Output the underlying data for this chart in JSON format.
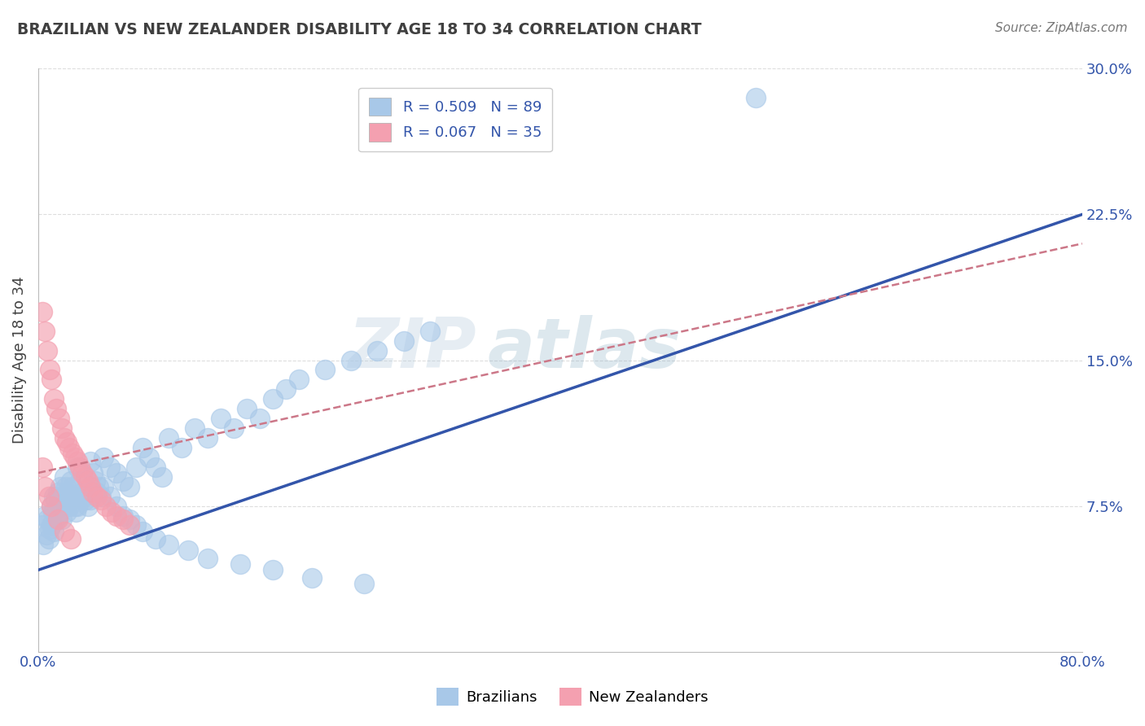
{
  "title": "BRAZILIAN VS NEW ZEALANDER DISABILITY AGE 18 TO 34 CORRELATION CHART",
  "source": "Source: ZipAtlas.com",
  "ylabel": "Disability Age 18 to 34",
  "xlim": [
    0.0,
    0.8
  ],
  "ylim": [
    0.0,
    0.3
  ],
  "xticks": [
    0.0,
    0.2,
    0.4,
    0.6,
    0.8
  ],
  "xtick_labels": [
    "0.0%",
    "",
    "",
    "",
    "80.0%"
  ],
  "ytick_labels_right": [
    "30.0%",
    "22.5%",
    "15.0%",
    "7.5%"
  ],
  "ytick_vals_right": [
    0.3,
    0.225,
    0.15,
    0.075
  ],
  "watermark": "ZIPatlas",
  "blue_R": 0.509,
  "blue_N": 89,
  "pink_R": 0.067,
  "pink_N": 35,
  "blue_color": "#A8C8E8",
  "pink_color": "#F4A0B0",
  "blue_line_color": "#3355AA",
  "pink_line_color": "#CC7788",
  "grid_color": "#DDDDDD",
  "title_color": "#404040",
  "blue_line_x0": 0.0,
  "blue_line_x1": 0.8,
  "blue_line_y0": 0.042,
  "blue_line_y1": 0.225,
  "pink_line_x0": 0.0,
  "pink_line_x1": 0.8,
  "pink_line_y0": 0.092,
  "pink_line_y1": 0.21,
  "blue_scatter_x": [
    0.003,
    0.005,
    0.007,
    0.009,
    0.01,
    0.011,
    0.012,
    0.013,
    0.014,
    0.015,
    0.016,
    0.017,
    0.018,
    0.019,
    0.02,
    0.021,
    0.022,
    0.023,
    0.024,
    0.025,
    0.026,
    0.027,
    0.028,
    0.029,
    0.03,
    0.032,
    0.034,
    0.036,
    0.038,
    0.04,
    0.042,
    0.044,
    0.046,
    0.048,
    0.05,
    0.055,
    0.06,
    0.065,
    0.07,
    0.075,
    0.08,
    0.085,
    0.09,
    0.095,
    0.1,
    0.11,
    0.12,
    0.13,
    0.14,
    0.15,
    0.16,
    0.17,
    0.18,
    0.19,
    0.2,
    0.22,
    0.24,
    0.26,
    0.28,
    0.3,
    0.004,
    0.006,
    0.008,
    0.01,
    0.012,
    0.015,
    0.018,
    0.022,
    0.026,
    0.03,
    0.035,
    0.04,
    0.045,
    0.05,
    0.055,
    0.06,
    0.065,
    0.07,
    0.075,
    0.08,
    0.09,
    0.1,
    0.115,
    0.13,
    0.155,
    0.18,
    0.21,
    0.25,
    0.55
  ],
  "blue_scatter_y": [
    0.065,
    0.07,
    0.068,
    0.063,
    0.075,
    0.072,
    0.08,
    0.078,
    0.068,
    0.082,
    0.078,
    0.085,
    0.08,
    0.075,
    0.09,
    0.085,
    0.082,
    0.078,
    0.075,
    0.088,
    0.085,
    0.08,
    0.075,
    0.072,
    0.095,
    0.088,
    0.082,
    0.078,
    0.075,
    0.098,
    0.092,
    0.088,
    0.085,
    0.08,
    0.1,
    0.095,
    0.092,
    0.088,
    0.085,
    0.095,
    0.105,
    0.1,
    0.095,
    0.09,
    0.11,
    0.105,
    0.115,
    0.11,
    0.12,
    0.115,
    0.125,
    0.12,
    0.13,
    0.135,
    0.14,
    0.145,
    0.15,
    0.155,
    0.16,
    0.165,
    0.055,
    0.06,
    0.058,
    0.065,
    0.062,
    0.07,
    0.068,
    0.072,
    0.078,
    0.075,
    0.08,
    0.078,
    0.082,
    0.085,
    0.08,
    0.075,
    0.07,
    0.068,
    0.065,
    0.062,
    0.058,
    0.055,
    0.052,
    0.048,
    0.045,
    0.042,
    0.038,
    0.035,
    0.285
  ],
  "pink_scatter_x": [
    0.003,
    0.005,
    0.007,
    0.009,
    0.01,
    0.012,
    0.014,
    0.016,
    0.018,
    0.02,
    0.022,
    0.024,
    0.026,
    0.028,
    0.03,
    0.032,
    0.034,
    0.036,
    0.038,
    0.04,
    0.042,
    0.045,
    0.048,
    0.052,
    0.056,
    0.06,
    0.065,
    0.07,
    0.003,
    0.005,
    0.008,
    0.01,
    0.015,
    0.02,
    0.025
  ],
  "pink_scatter_y": [
    0.175,
    0.165,
    0.155,
    0.145,
    0.14,
    0.13,
    0.125,
    0.12,
    0.115,
    0.11,
    0.108,
    0.105,
    0.102,
    0.1,
    0.098,
    0.095,
    0.092,
    0.09,
    0.088,
    0.085,
    0.082,
    0.08,
    0.078,
    0.075,
    0.072,
    0.07,
    0.068,
    0.065,
    0.095,
    0.085,
    0.08,
    0.075,
    0.068,
    0.062,
    0.058
  ]
}
